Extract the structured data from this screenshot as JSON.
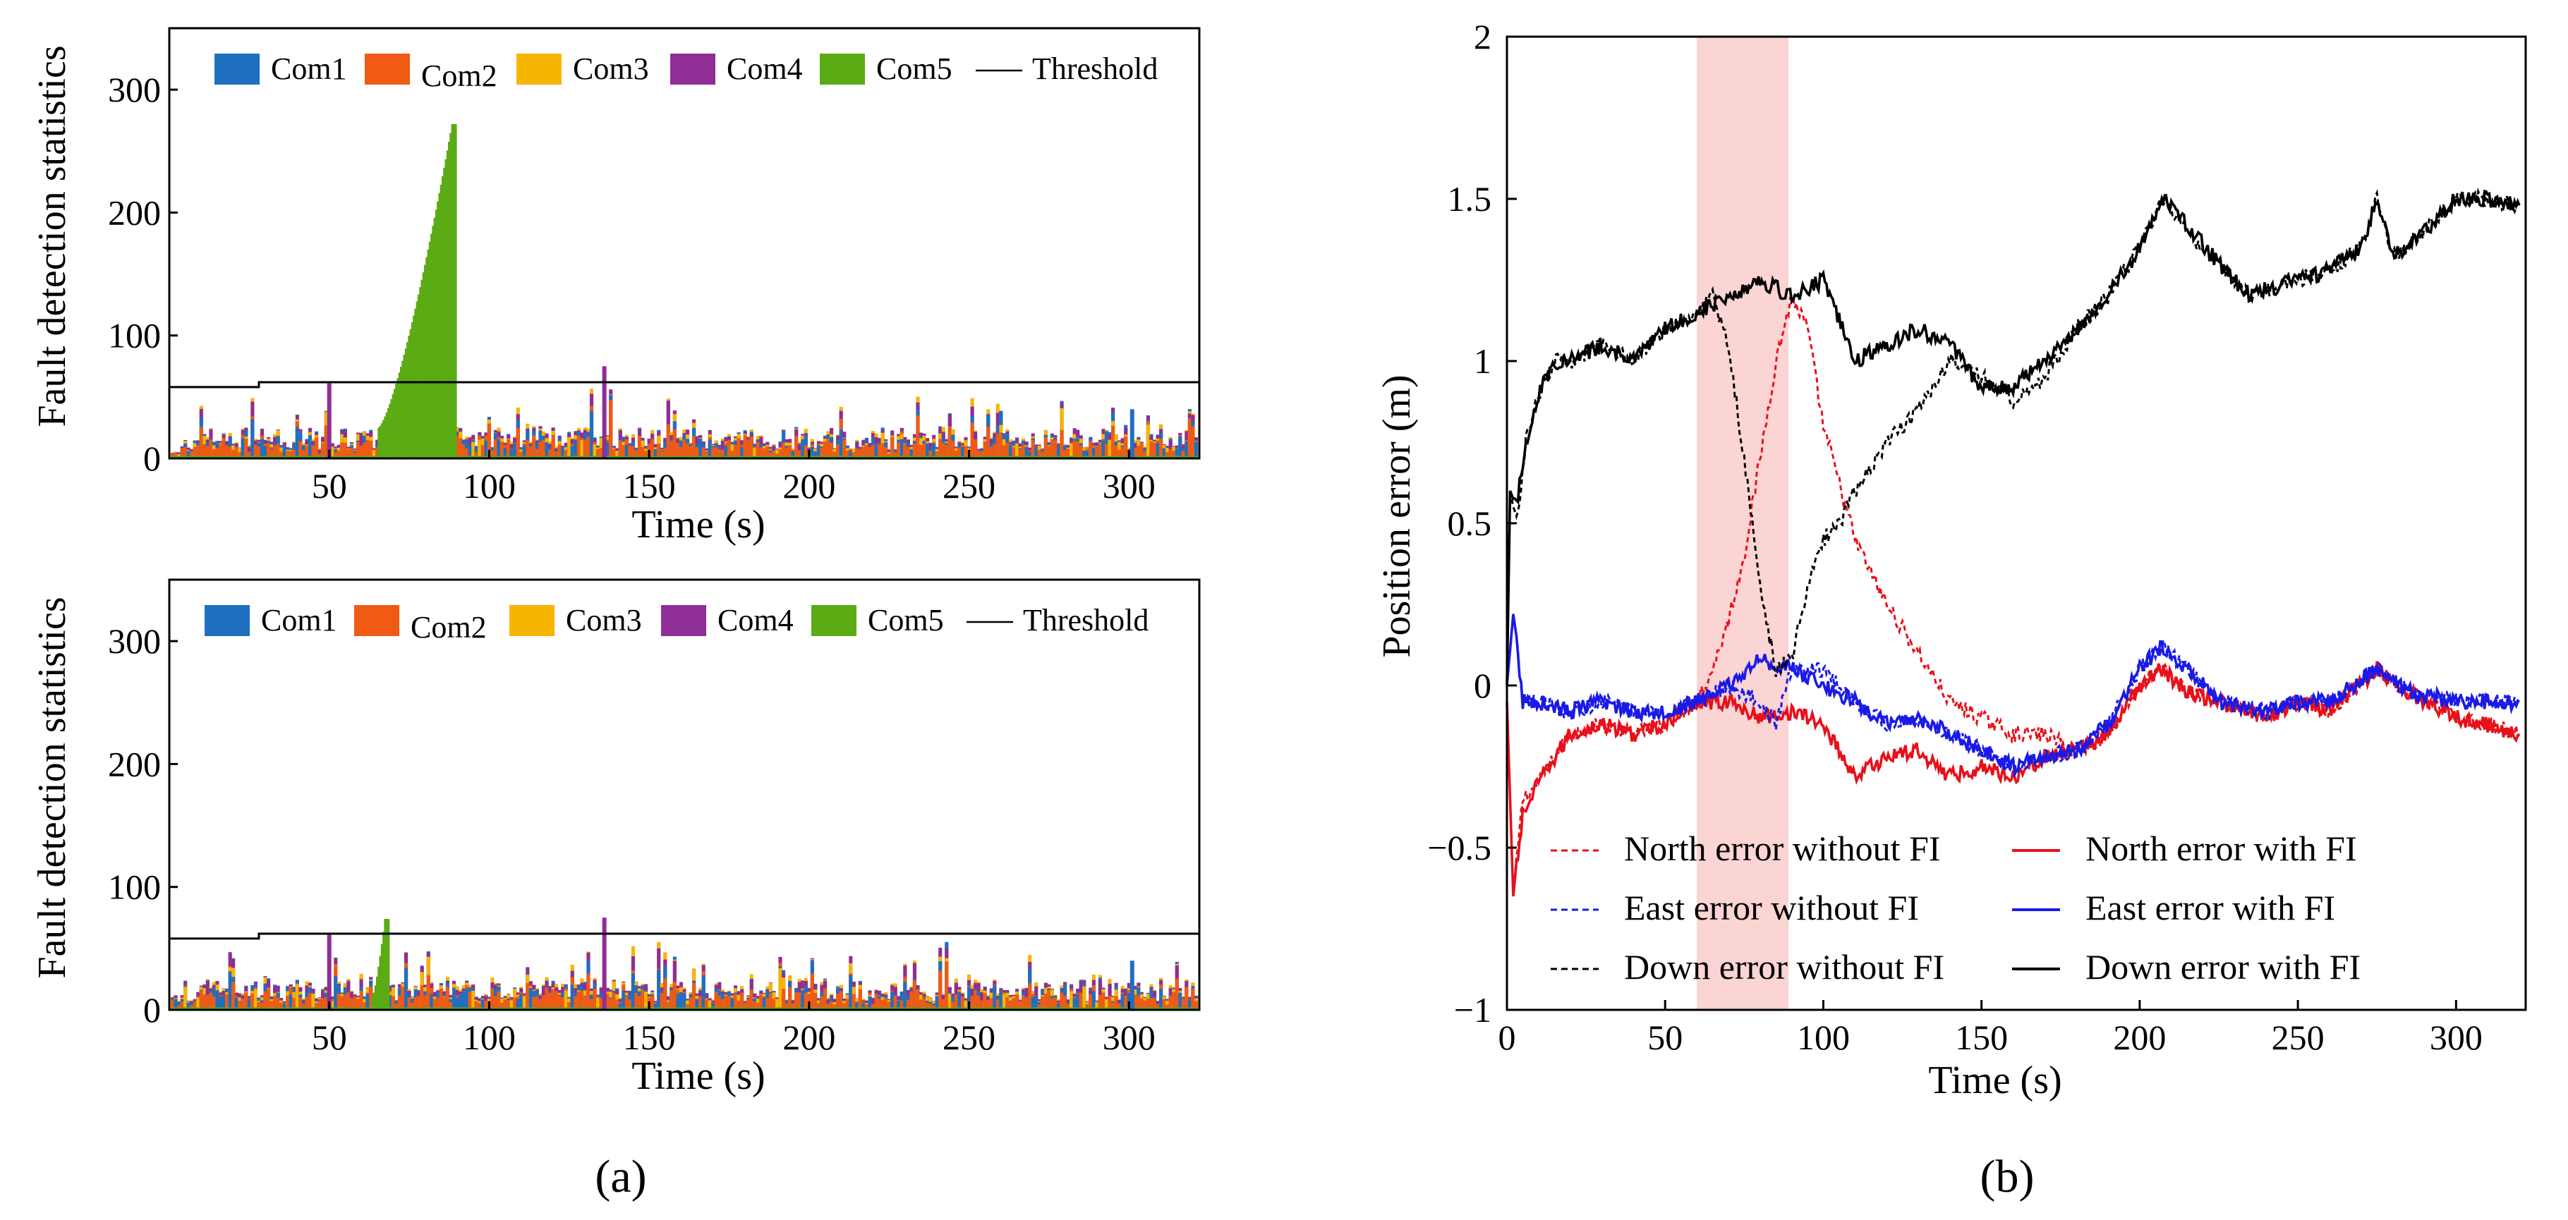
{
  "chart_data": [
    {
      "type": "bar",
      "panel": "a-top",
      "title": "",
      "xlabel": "Time (s)",
      "ylabel": "Fault detection statistics",
      "xlim": [
        0,
        322
      ],
      "ylim": [
        0,
        350
      ],
      "xticks": [
        50,
        100,
        150,
        200,
        250,
        300
      ],
      "yticks": [
        0,
        100,
        200,
        300
      ],
      "legend": {
        "placement": "top",
        "entries": [
          "Com1",
          "Com2",
          "Com3",
          "Com4",
          "Com5",
          "Threshold"
        ]
      },
      "series_colors": {
        "Com1": "#1f6fc0",
        "Com2": "#f05a14",
        "Com3": "#f7b500",
        "Com4": "#8e2e96",
        "Com5": "#5aab14",
        "Threshold": "#000000"
      },
      "threshold": {
        "x": [
          0,
          28,
          28,
          322
        ],
        "values": [
          58,
          58,
          62,
          62
        ]
      },
      "baseline_level": 20,
      "peaks": {
        "Com4": [
          {
            "x": 50,
            "value": 61
          },
          {
            "x": 136,
            "value": 75
          }
        ],
        "Com1": [
          {
            "x": 301,
            "value": 40
          }
        ]
      },
      "fault_bars": {
        "series": "Com5",
        "start": 66,
        "end": 89,
        "values_start": 25,
        "values_end": 272
      }
    },
    {
      "type": "bar",
      "panel": "a-bottom",
      "title": "",
      "xlabel": "Time (s)",
      "ylabel": "Fault detection statistics",
      "xlim": [
        0,
        322
      ],
      "ylim": [
        0,
        350
      ],
      "xticks": [
        50,
        100,
        150,
        200,
        250,
        300
      ],
      "yticks": [
        0,
        100,
        200,
        300
      ],
      "legend": {
        "placement": "top",
        "entries": [
          "Com1",
          "Com2",
          "Com3",
          "Com4",
          "Com5",
          "Threshold"
        ]
      },
      "series_colors": {
        "Com1": "#1f6fc0",
        "Com2": "#f05a14",
        "Com3": "#f7b500",
        "Com4": "#8e2e96",
        "Com5": "#5aab14",
        "Threshold": "#000000"
      },
      "threshold": {
        "x": [
          0,
          28,
          28,
          322
        ],
        "values": [
          58,
          58,
          62,
          62
        ]
      },
      "baseline_level": 20,
      "peaks": {
        "Com4": [
          {
            "x": 50,
            "value": 61
          },
          {
            "x": 136,
            "value": 75
          }
        ],
        "Com1": [
          {
            "x": 301,
            "value": 40
          }
        ]
      },
      "fault_bars": {
        "series": "Com5",
        "start": 64,
        "end": 68,
        "values_start": 10,
        "values_end": 74
      }
    },
    {
      "type": "line",
      "panel": "b",
      "title": "",
      "xlabel": "Time (s)",
      "ylabel": "Position error (m)",
      "xlim": [
        0,
        322
      ],
      "ylim": [
        -1,
        2
      ],
      "xticks": [
        0,
        50,
        100,
        150,
        200,
        250,
        300
      ],
      "yticks": [
        -1,
        -0.5,
        0,
        0.5,
        1,
        1.5,
        2
      ],
      "ytick_labels": [
        "−1",
        "−0.5",
        "0",
        "0.5",
        "1",
        "1.5",
        "2"
      ],
      "highlight_span": {
        "x": [
          60,
          89
        ],
        "color": "#fbd4d4"
      },
      "legend": {
        "placement": "bottom-left",
        "columns": 2
      },
      "series": [
        {
          "name": "North error without FI",
          "color": "#e8101a",
          "dash": true,
          "x": [
            0,
            2,
            5,
            10,
            20,
            30,
            40,
            50,
            60,
            65,
            70,
            75,
            80,
            85,
            90,
            95,
            100,
            110,
            120,
            130,
            140,
            150,
            160,
            170,
            180,
            190,
            200,
            207,
            215,
            225,
            240,
            250,
            260,
            275,
            285,
            300,
            310,
            320
          ],
          "values": [
            -0.05,
            -0.65,
            -0.35,
            -0.3,
            -0.15,
            -0.12,
            -0.15,
            -0.12,
            -0.05,
            0.05,
            0.2,
            0.4,
            0.7,
            1.0,
            1.2,
            1.1,
            0.8,
            0.45,
            0.25,
            0.1,
            -0.05,
            -0.1,
            -0.15,
            -0.15,
            -0.2,
            -0.15,
            0.0,
            0.05,
            -0.02,
            -0.05,
            -0.1,
            -0.05,
            -0.08,
            0.05,
            -0.02,
            -0.1,
            -0.12,
            -0.15
          ]
        },
        {
          "name": "North error with FI",
          "color": "#e8101a",
          "dash": false,
          "x": [
            0,
            2,
            5,
            10,
            20,
            30,
            40,
            50,
            60,
            70,
            80,
            90,
            100,
            110,
            120,
            130,
            140,
            150,
            160,
            170,
            180,
            190,
            200,
            207,
            215,
            225,
            240,
            250,
            260,
            275,
            285,
            300,
            310,
            320
          ],
          "values": [
            -0.05,
            -0.65,
            -0.4,
            -0.3,
            -0.15,
            -0.12,
            -0.15,
            -0.12,
            -0.05,
            -0.05,
            -0.1,
            -0.08,
            -0.12,
            -0.28,
            -0.22,
            -0.2,
            -0.28,
            -0.25,
            -0.28,
            -0.22,
            -0.2,
            -0.15,
            0.0,
            0.05,
            -0.02,
            -0.05,
            -0.1,
            -0.05,
            -0.08,
            0.05,
            -0.02,
            -0.1,
            -0.12,
            -0.15
          ]
        },
        {
          "name": "East error without FI",
          "color": "#1a1ae8",
          "dash": true,
          "x": [
            0,
            2,
            5,
            10,
            20,
            30,
            40,
            50,
            60,
            70,
            80,
            85,
            90,
            100,
            110,
            120,
            130,
            140,
            150,
            160,
            170,
            180,
            190,
            200,
            207,
            215,
            225,
            240,
            250,
            260,
            275,
            285,
            300,
            310,
            320
          ],
          "values": [
            0.0,
            0.22,
            -0.05,
            -0.05,
            -0.08,
            -0.05,
            -0.08,
            -0.08,
            -0.05,
            0.0,
            -0.05,
            -0.12,
            0.05,
            0.05,
            -0.05,
            -0.12,
            -0.1,
            -0.15,
            -0.2,
            -0.25,
            -0.22,
            -0.2,
            -0.12,
            0.05,
            0.12,
            0.05,
            -0.05,
            -0.08,
            -0.05,
            -0.05,
            0.05,
            -0.02,
            -0.05,
            -0.05,
            -0.05
          ]
        },
        {
          "name": "East error with FI",
          "color": "#1a1ae8",
          "dash": false,
          "x": [
            0,
            2,
            5,
            10,
            20,
            30,
            40,
            50,
            60,
            70,
            80,
            90,
            100,
            110,
            120,
            130,
            140,
            150,
            160,
            170,
            180,
            190,
            200,
            207,
            215,
            225,
            240,
            250,
            260,
            275,
            285,
            300,
            310,
            320
          ],
          "values": [
            0.0,
            0.22,
            -0.05,
            -0.05,
            -0.08,
            -0.05,
            -0.08,
            -0.08,
            -0.05,
            0.0,
            0.08,
            0.05,
            0.0,
            -0.05,
            -0.12,
            -0.1,
            -0.15,
            -0.2,
            -0.25,
            -0.22,
            -0.2,
            -0.12,
            0.05,
            0.12,
            0.05,
            -0.05,
            -0.08,
            -0.05,
            -0.05,
            0.05,
            -0.02,
            -0.05,
            -0.05,
            -0.05
          ]
        },
        {
          "name": "Down error without FI",
          "color": "#000000",
          "dash": true,
          "x": [
            0,
            1,
            3,
            6,
            10,
            15,
            20,
            30,
            40,
            50,
            60,
            65,
            70,
            75,
            80,
            85,
            90,
            95,
            100,
            105,
            110,
            120,
            130,
            140,
            150,
            160,
            170,
            180,
            190,
            200,
            207,
            215,
            225,
            235,
            240,
            250,
            260,
            270,
            275,
            280,
            290,
            300,
            310,
            320
          ],
          "values": [
            0.0,
            0.6,
            0.5,
            0.75,
            0.9,
            1.0,
            1.0,
            1.05,
            1.0,
            1.1,
            1.15,
            1.2,
            1.05,
            0.7,
            0.3,
            0.05,
            0.08,
            0.3,
            0.45,
            0.5,
            0.6,
            0.75,
            0.85,
            1.0,
            0.95,
            0.88,
            0.95,
            1.1,
            1.2,
            1.35,
            1.5,
            1.4,
            1.3,
            1.2,
            1.22,
            1.25,
            1.28,
            1.35,
            1.5,
            1.32,
            1.4,
            1.5,
            1.5,
            1.48
          ]
        },
        {
          "name": "Down error with FI",
          "color": "#000000",
          "dash": false,
          "x": [
            0,
            1,
            3,
            6,
            10,
            15,
            20,
            30,
            40,
            50,
            60,
            70,
            80,
            90,
            100,
            110,
            120,
            130,
            140,
            150,
            160,
            170,
            180,
            190,
            200,
            207,
            215,
            225,
            235,
            240,
            250,
            260,
            270,
            275,
            280,
            290,
            300,
            310,
            320
          ],
          "values": [
            0.0,
            0.6,
            0.55,
            0.75,
            0.9,
            1.0,
            1.0,
            1.05,
            1.0,
            1.1,
            1.15,
            1.2,
            1.25,
            1.2,
            1.25,
            1.0,
            1.05,
            1.1,
            1.05,
            0.92,
            0.92,
            1.0,
            1.1,
            1.2,
            1.35,
            1.5,
            1.42,
            1.3,
            1.2,
            1.22,
            1.25,
            1.28,
            1.35,
            1.5,
            1.32,
            1.4,
            1.5,
            1.5,
            1.48
          ]
        }
      ]
    }
  ],
  "captions": {
    "a": "(a)",
    "b": "(b)"
  }
}
